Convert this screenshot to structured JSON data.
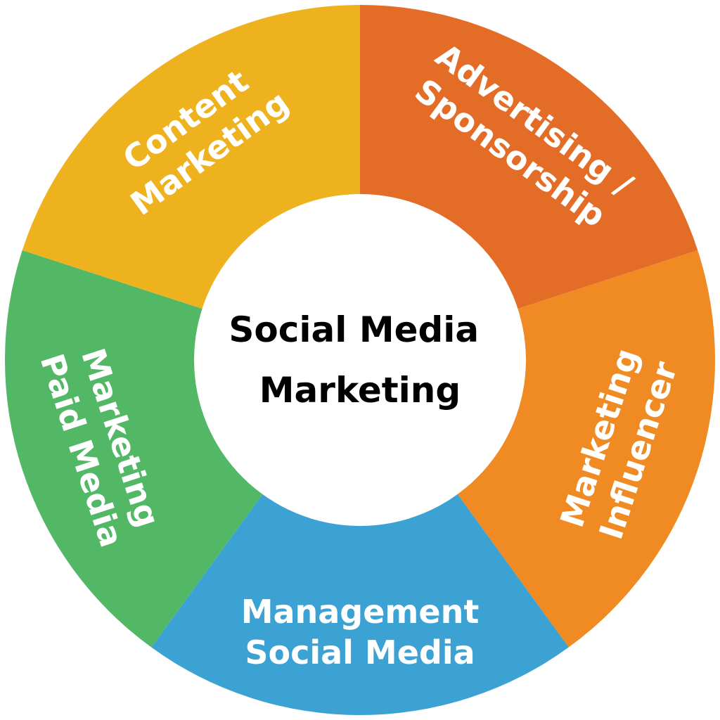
{
  "center": {
    "lines": [
      "Social Media",
      "Marketing"
    ],
    "color": "#ffffff",
    "text_color": "#000000"
  },
  "segments": [
    {
      "name": "advertising-sponsorship",
      "lines": [
        "Advertising /",
        "Sponsorship"
      ],
      "color": "#E36D26"
    },
    {
      "name": "influencer-marketing",
      "lines": [
        "Influencer",
        "Marketing"
      ],
      "color": "#F08A22"
    },
    {
      "name": "social-media-management",
      "lines": [
        "Social Media",
        "Management"
      ],
      "color": "#3BA2D3"
    },
    {
      "name": "paid-media-marketing",
      "lines": [
        "Paid Media",
        "Marketing"
      ],
      "color": "#52B865"
    },
    {
      "name": "content-marketing",
      "lines": [
        "Content",
        "Marketing"
      ],
      "color": "#EEB21F"
    }
  ],
  "label_color": "#ffffff"
}
